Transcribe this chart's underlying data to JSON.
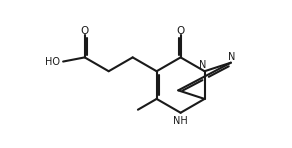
{
  "bg_color": "#ffffff",
  "line_color": "#1a1a1a",
  "lw": 1.5,
  "fs": 7.0,
  "fw": 2.92,
  "fh": 1.48,
  "dpi": 100,
  "xlim": [
    0.0,
    10.5
  ],
  "ylim": [
    0.8,
    5.8
  ]
}
